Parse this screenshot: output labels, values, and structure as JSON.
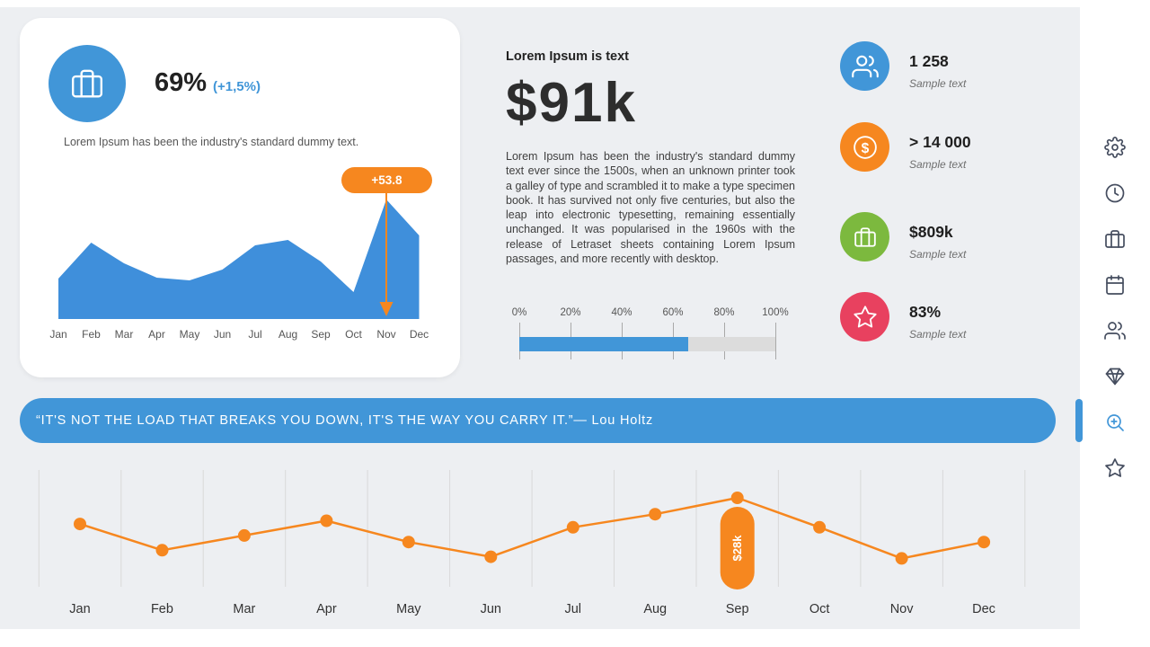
{
  "theme": {
    "bg": "#edeff2",
    "panel": "#ffffff",
    "blue": "#4196d8",
    "orange": "#f6871f",
    "green": "#7cb93e",
    "pink": "#e8415f",
    "dark": "#2d2d2d",
    "gray_text": "#555555",
    "light_gray": "#dcdcdc"
  },
  "kpi_card": {
    "percent": "69%",
    "delta": "(+1,5%)",
    "description": "Lorem Ipsum has been the industry's standard dummy text.",
    "badge_label": "+53.8"
  },
  "summary": {
    "heading": "Lorem Ipsum is text",
    "value": "$91k",
    "body": "Lorem Ipsum has been the industry's standard dummy text ever since the 1500s, when an unknown printer took a galley of type and scrambled it to make a type specimen book. It has survived not only five centuries, but also the leap into electronic typesetting, remaining essentially unchanged. It was popularised in the 1960s with the release of Letraset sheets containing Lorem Ipsum passages, and more recently with desktop."
  },
  "progress": {
    "ticks": [
      "0%",
      "20%",
      "40%",
      "60%",
      "80%",
      "100%"
    ],
    "percent": 66
  },
  "stats": [
    {
      "icon": "users-icon",
      "color": "#4196d8",
      "value": "1 258",
      "label": "Sample text"
    },
    {
      "icon": "dollar-icon",
      "color": "#f6871f",
      "value": "> 14 000",
      "label": "Sample text"
    },
    {
      "icon": "briefcase-icon",
      "color": "#7cb93e",
      "value": "$809k",
      "label": "Sample text"
    },
    {
      "icon": "star-icon",
      "color": "#e8415f",
      "value": "83%",
      "label": "Sample text"
    }
  ],
  "quote": {
    "text": "“IT'S NOT THE LOAD THAT BREAKS YOU DOWN, IT'S THE WAY YOU CARRY IT.”— Lou Holtz"
  },
  "sidebar": {
    "icons": [
      "gear-icon",
      "clock-icon",
      "briefcase-icon",
      "calendar-icon",
      "users-icon",
      "diamond-icon",
      "search-icon",
      "star-icon"
    ],
    "active": "search-icon"
  },
  "chart_data": [
    {
      "type": "area",
      "title": "",
      "categories": [
        "Jan",
        "Feb",
        "Mar",
        "Apr",
        "May",
        "Jun",
        "Jul",
        "Aug",
        "Sep",
        "Oct",
        "Nov",
        "Dec"
      ],
      "values": [
        45,
        85,
        62,
        46,
        43,
        55,
        82,
        88,
        64,
        30,
        133,
        93
      ],
      "unit": "relative height (pixel-estimated, no y-axis shown)",
      "ylim": [
        0,
        155
      ],
      "annotation": {
        "label": "+53.8",
        "category": "Nov"
      },
      "color": "#3f8fdb",
      "grid": false,
      "legend": false
    },
    {
      "type": "line",
      "title": "",
      "categories": [
        "Jan",
        "Feb",
        "Mar",
        "Apr",
        "May",
        "Jun",
        "Jul",
        "Aug",
        "Sep",
        "Oct",
        "Nov",
        "Dec"
      ],
      "values": [
        20,
        12,
        16.5,
        21,
        14.5,
        10,
        19,
        23,
        28,
        19,
        9.5,
        14.5
      ],
      "unit": "k$ (estimated; Sep data label reads $28k)",
      "annotation": {
        "label": "$28k",
        "category": "Sep"
      },
      "color": "#f6871f",
      "grid": "vertical-only",
      "legend": false
    }
  ]
}
